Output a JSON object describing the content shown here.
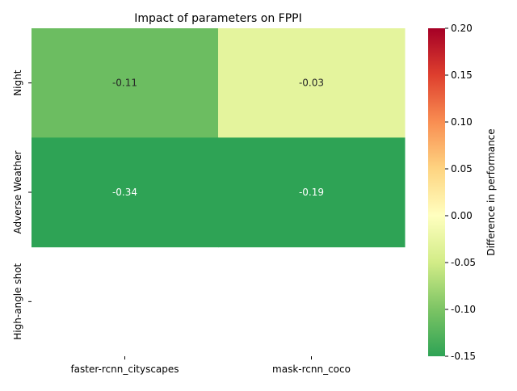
{
  "chart_data": {
    "type": "heatmap",
    "title": "Impact of parameters on FPPI",
    "xlabel": "",
    "ylabel": "",
    "x_categories": [
      "faster-rcnn_cityscapes",
      "mask-rcnn_coco"
    ],
    "y_categories": [
      "Night",
      "Adverse Weather",
      "High-angle shot"
    ],
    "values": [
      [
        -0.11,
        -0.03
      ],
      [
        -0.34,
        -0.19
      ],
      [
        null,
        null
      ]
    ],
    "cell_labels": [
      [
        "-0.11",
        "-0.03"
      ],
      [
        "-0.34",
        "-0.19"
      ],
      [
        "",
        ""
      ]
    ],
    "colorbar": {
      "label": "Difference in performance",
      "vmin": -0.15,
      "vmax": 0.2,
      "ticks": [
        "0.20",
        "0.15",
        "0.10",
        "0.05",
        "0.00",
        "-0.05",
        "-0.10",
        "-0.15"
      ],
      "colormap": "RdYlGn_r"
    }
  }
}
